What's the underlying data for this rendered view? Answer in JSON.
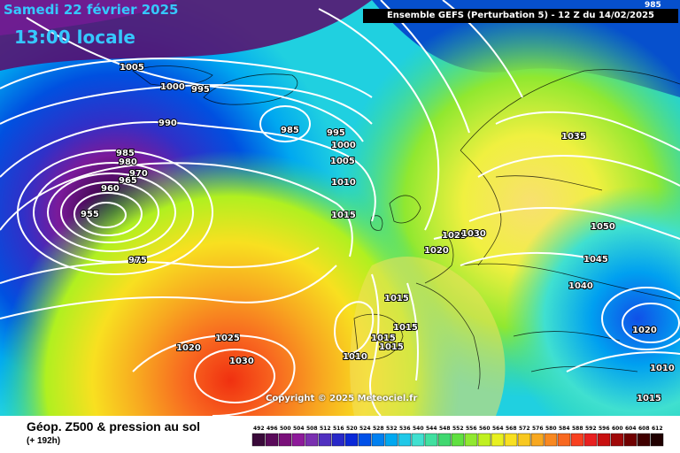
{
  "header": {
    "date": "Samedi 22 février 2025",
    "local_time": "13:00 locale",
    "run_info": "Ensemble GEFS  (Perturbation 5)  -  12 Z du 14/02/2025",
    "corner_value": "985"
  },
  "copyright": "Copyright © 2025 Meteociel.fr",
  "footer": {
    "parameter": "Géop. Z500 & pression au sol",
    "lead_time": "(+ 192h)"
  },
  "colorscale": {
    "labels": [
      "492",
      "496",
      "500",
      "504",
      "508",
      "512",
      "516",
      "520",
      "524",
      "528",
      "532",
      "536",
      "540",
      "544",
      "548",
      "552",
      "556",
      "560",
      "564",
      "568",
      "572",
      "576",
      "580",
      "584",
      "588",
      "592",
      "596",
      "600",
      "604",
      "608",
      "612"
    ],
    "colors": [
      "#3a0a3a",
      "#5a0a5a",
      "#7a107a",
      "#8e1a9a",
      "#7a30b0",
      "#5030c0",
      "#2828c8",
      "#0a28d8",
      "#0050e8",
      "#0080f0",
      "#00a8f0",
      "#20c8e8",
      "#40e0d0",
      "#40e0a0",
      "#40d870",
      "#60e040",
      "#90e830",
      "#c0f020",
      "#e8f020",
      "#f8e020",
      "#f8c820",
      "#f8a820",
      "#f88820",
      "#f86820",
      "#f84020",
      "#e82020",
      "#c81010",
      "#a00808",
      "#700000",
      "#400000",
      "#200000"
    ]
  },
  "isobar_labels": [
    {
      "id": "p1005a",
      "text": "1005"
    },
    {
      "id": "p1000a",
      "text": "1000"
    },
    {
      "id": "p995a",
      "text": "995"
    },
    {
      "id": "p990a",
      "text": "990"
    },
    {
      "id": "p985a",
      "text": "985"
    },
    {
      "id": "p995b",
      "text": "995"
    },
    {
      "id": "p1000b",
      "text": "1000"
    },
    {
      "id": "p1005b",
      "text": "1005"
    },
    {
      "id": "p1010a",
      "text": "1010"
    },
    {
      "id": "p1015a",
      "text": "1015"
    },
    {
      "id": "p985b",
      "text": "985"
    },
    {
      "id": "p980",
      "text": "980"
    },
    {
      "id": "p965",
      "text": "965"
    },
    {
      "id": "p970",
      "text": "970"
    },
    {
      "id": "p960",
      "text": "960"
    },
    {
      "id": "p955",
      "text": "955"
    },
    {
      "id": "p975",
      "text": "975"
    },
    {
      "id": "p1020a",
      "text": "1020"
    },
    {
      "id": "p1025a",
      "text": "1025"
    },
    {
      "id": "p1030a",
      "text": "1030"
    },
    {
      "id": "p1035",
      "text": "1035"
    },
    {
      "id": "p1050",
      "text": "1050"
    },
    {
      "id": "p1045",
      "text": "1045"
    },
    {
      "id": "p1040",
      "text": "1040"
    },
    {
      "id": "p1025b",
      "text": "1025"
    },
    {
      "id": "p1030b",
      "text": "1030"
    },
    {
      "id": "p1020b",
      "text": "1020"
    },
    {
      "id": "p1015b",
      "text": "1015"
    },
    {
      "id": "p1015c",
      "text": "1015"
    },
    {
      "id": "p1015d",
      "text": "1015"
    },
    {
      "id": "p1015e",
      "text": "1015"
    },
    {
      "id": "p1010b",
      "text": "1010"
    },
    {
      "id": "p1020c",
      "text": "1020"
    },
    {
      "id": "p1010c",
      "text": "1010"
    },
    {
      "id": "p1015f",
      "text": "1015"
    }
  ]
}
